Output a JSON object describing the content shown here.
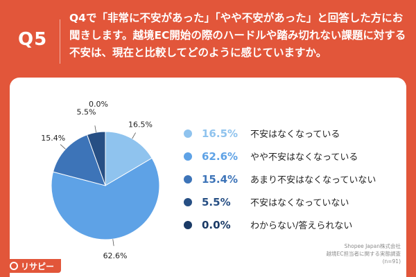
{
  "header": {
    "question_number": "Q5",
    "question_text": "Q4で「非常に不安があった」「やや不安があった」と回答した方にお聞きします。越境EC開始の際のハードルや踏み切れない課題に対する不安は、現在と比較してどのように感じていますか。"
  },
  "chart_data": {
    "type": "pie",
    "labels": [
      "不安はなくなっている",
      "やや不安はなくなっている",
      "あまり不安はなくなっていない",
      "不安はなくなっていない",
      "わからない/答えられない"
    ],
    "values": [
      16.5,
      62.6,
      15.4,
      5.5,
      0.0
    ],
    "value_labels": [
      "16.5%",
      "62.6%",
      "15.4%",
      "5.5%",
      "0.0%"
    ],
    "colors": [
      "#8fc3ee",
      "#5ea2e6",
      "#3d74b8",
      "#274f84",
      "#1a3a66"
    ],
    "start_angle_deg": 0,
    "direction": "clockwise",
    "legend_position": "right"
  },
  "source": {
    "line1": "Shopee Japan株式会社",
    "line2": "越境EC担当者に関する実態調査",
    "line3": "(n=91)"
  },
  "logo": {
    "text": "リサピー"
  }
}
